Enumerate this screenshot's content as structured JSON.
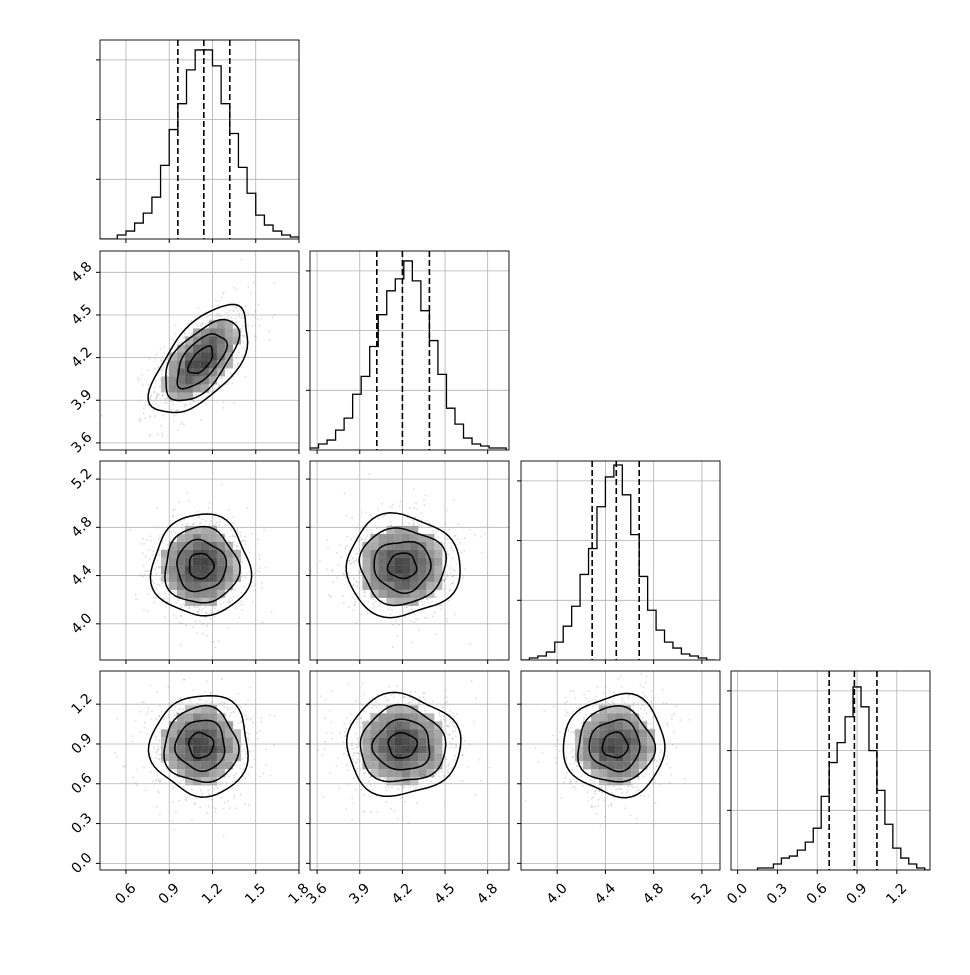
{
  "chart_data": {
    "type": "corner",
    "grid": true,
    "panel_grid": [
      [
        "hist",
        "",
        "",
        ""
      ],
      [
        "contour",
        "hist",
        "",
        ""
      ],
      [
        "contour",
        "contour",
        "hist",
        ""
      ],
      [
        "contour",
        "contour",
        "contour",
        "hist"
      ]
    ],
    "parameters": [
      {
        "xlim": [
          0.42,
          1.8
        ],
        "ylim": [
          0,
          1
        ],
        "quantiles": [
          0.96,
          1.14,
          1.32
        ],
        "x_ticks": [
          "0.6",
          "0.9",
          "1.2",
          "1.5",
          "1.8"
        ],
        "hist_edges": [
          0.42,
          0.48,
          0.54,
          0.6,
          0.66,
          0.72,
          0.78,
          0.84,
          0.9,
          0.96,
          1.02,
          1.08,
          1.14,
          1.2,
          1.26,
          1.32,
          1.38,
          1.44,
          1.5,
          1.56,
          1.62,
          1.68,
          1.74,
          1.8
        ],
        "hist_heights": [
          0.0,
          0.0,
          0.02,
          0.04,
          0.08,
          0.13,
          0.21,
          0.37,
          0.55,
          0.68,
          0.85,
          0.95,
          0.95,
          0.87,
          0.68,
          0.53,
          0.36,
          0.23,
          0.12,
          0.07,
          0.04,
          0.02,
          0.01
        ]
      },
      {
        "xlim": [
          3.55,
          4.95
        ],
        "ylim": [
          0,
          1
        ],
        "quantiles": [
          4.02,
          4.2,
          4.39
        ],
        "x_ticks": [
          "3.6",
          "3.9",
          "4.2",
          "4.5",
          "4.8"
        ],
        "y_ticks": [
          "3.6",
          "3.9",
          "4.2",
          "4.5",
          "4.8"
        ],
        "hist_edges": [
          3.55,
          3.61,
          3.67,
          3.73,
          3.79,
          3.85,
          3.91,
          3.97,
          4.03,
          4.09,
          4.15,
          4.21,
          4.27,
          4.33,
          4.39,
          4.45,
          4.51,
          4.57,
          4.63,
          4.69,
          4.75,
          4.81,
          4.87,
          4.93
        ],
        "hist_heights": [
          0.01,
          0.03,
          0.05,
          0.1,
          0.16,
          0.28,
          0.37,
          0.52,
          0.68,
          0.8,
          0.86,
          0.95,
          0.85,
          0.7,
          0.55,
          0.38,
          0.21,
          0.13,
          0.06,
          0.03,
          0.02,
          0.01,
          0.01
        ]
      },
      {
        "xlim": [
          3.7,
          5.35
        ],
        "ylim": [
          0,
          1
        ],
        "quantiles": [
          4.29,
          4.49,
          4.68
        ],
        "x_ticks": [
          "4.0",
          "4.4",
          "4.8",
          "5.2"
        ],
        "y_ticks": [
          "4.0",
          "4.4",
          "4.8",
          "5.2"
        ],
        "hist_edges": [
          3.7,
          3.77,
          3.84,
          3.91,
          3.98,
          4.05,
          4.12,
          4.19,
          4.26,
          4.33,
          4.4,
          4.47,
          4.54,
          4.61,
          4.68,
          4.75,
          4.82,
          4.89,
          4.96,
          5.03,
          5.1,
          5.17,
          5.24,
          5.31
        ],
        "hist_heights": [
          0.0,
          0.01,
          0.02,
          0.04,
          0.09,
          0.17,
          0.27,
          0.43,
          0.56,
          0.77,
          0.92,
          0.98,
          0.83,
          0.63,
          0.42,
          0.25,
          0.15,
          0.09,
          0.06,
          0.03,
          0.02,
          0.01,
          0.0
        ]
      },
      {
        "xlim": [
          -0.05,
          1.45
        ],
        "ylim": [
          0,
          1
        ],
        "quantiles": [
          0.69,
          0.88,
          1.05
        ],
        "x_ticks": [
          "0.0",
          "0.3",
          "0.6",
          "0.9",
          "1.2"
        ],
        "y_ticks": [
          "0.0",
          "0.3",
          "0.6",
          "0.9",
          "1.2"
        ],
        "hist_edges": [
          0.15,
          0.21,
          0.27,
          0.33,
          0.39,
          0.45,
          0.51,
          0.57,
          0.63,
          0.69,
          0.75,
          0.81,
          0.87,
          0.93,
          0.99,
          1.05,
          1.11,
          1.17,
          1.23,
          1.29,
          1.35,
          1.41,
          1.45
        ],
        "hist_heights": [
          0.01,
          0.01,
          0.03,
          0.06,
          0.07,
          0.1,
          0.14,
          0.21,
          0.37,
          0.54,
          0.64,
          0.77,
          0.92,
          0.82,
          0.6,
          0.4,
          0.23,
          0.11,
          0.06,
          0.03,
          0.01,
          0.0
        ]
      }
    ],
    "pairs": [
      {
        "row": 1,
        "col": 0,
        "x_center": 1.12,
        "y_center": 4.18,
        "sx": 0.17,
        "sy": 0.19,
        "rho": 0.6
      },
      {
        "row": 2,
        "col": 0,
        "x_center": 1.12,
        "y_center": 4.48,
        "sx": 0.17,
        "sy": 0.21,
        "rho": 0.0
      },
      {
        "row": 2,
        "col": 1,
        "x_center": 4.2,
        "y_center": 4.48,
        "sx": 0.2,
        "sy": 0.21,
        "rho": 0.0
      },
      {
        "row": 3,
        "col": 0,
        "x_center": 1.12,
        "y_center": 0.89,
        "sx": 0.17,
        "sy": 0.19,
        "rho": 0.0
      },
      {
        "row": 3,
        "col": 1,
        "x_center": 4.2,
        "y_center": 0.89,
        "sx": 0.2,
        "sy": 0.19,
        "rho": 0.0
      },
      {
        "row": 3,
        "col": 2,
        "x_center": 4.48,
        "y_center": 0.89,
        "sx": 0.21,
        "sy": 0.19,
        "rho": 0.0
      }
    ],
    "contour_levels_sigma": [
      0.5,
      1.0,
      1.5,
      2.0
    ]
  }
}
